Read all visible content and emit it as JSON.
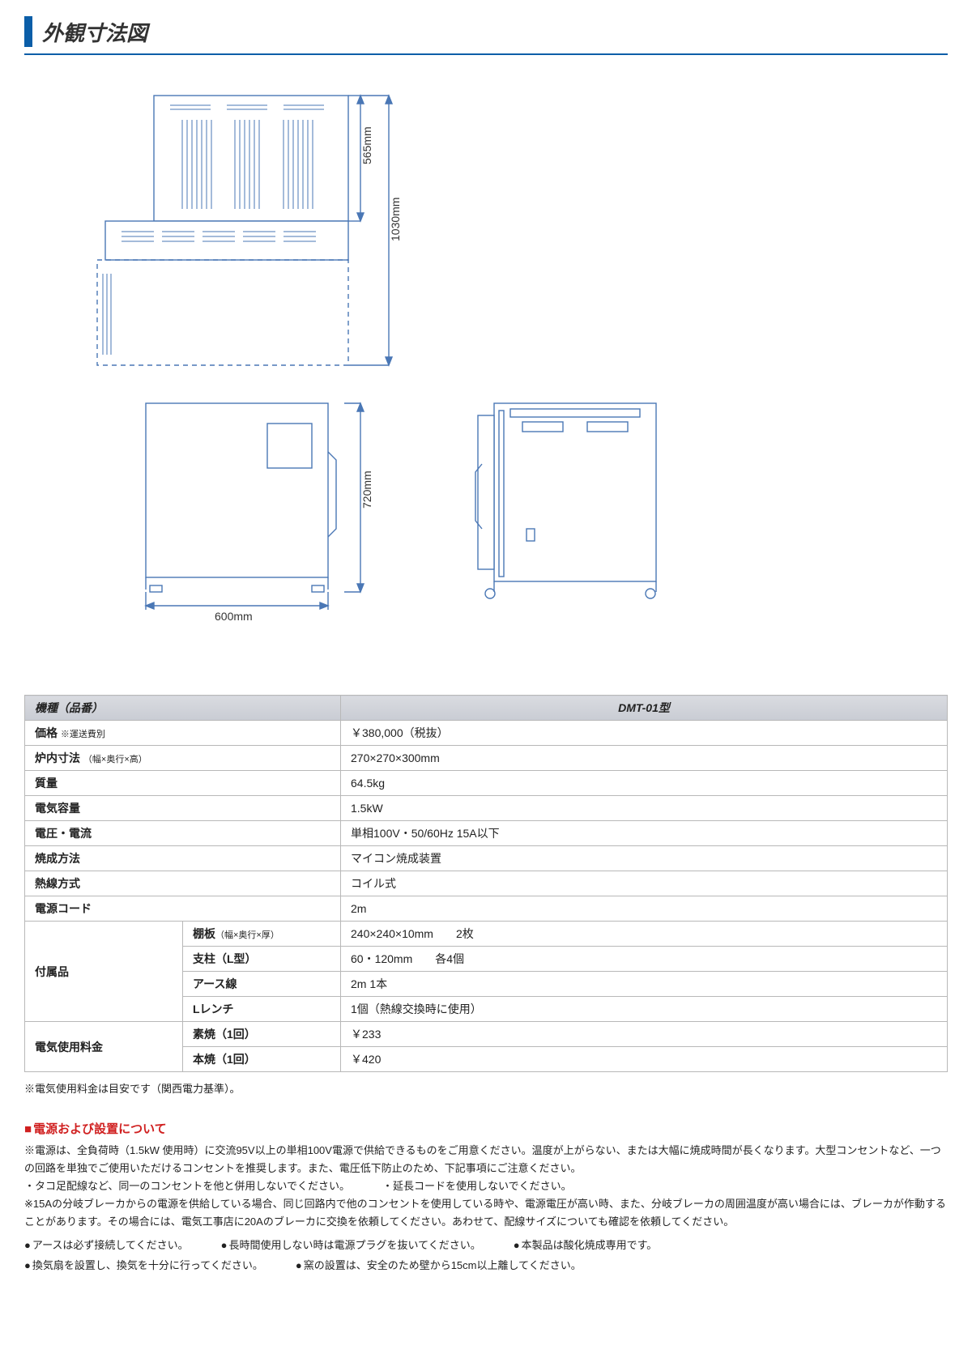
{
  "title": "外観寸法図",
  "diagram": {
    "stroke": "#4a77b5",
    "bg": "#ffffff",
    "dims": {
      "top_height_label": "565mm",
      "total_height_label": "1030mm",
      "front_height_label": "720mm",
      "front_width_label": "600mm"
    }
  },
  "table": {
    "header_label": "機種（品番）",
    "header_model": "DMT-01型",
    "rows": [
      {
        "label": "価格",
        "sub": "※運送費別",
        "value": "￥380,000（税抜）"
      },
      {
        "label": "炉内寸法",
        "sub": "（幅×奥行×高）",
        "value": "270×270×300mm"
      },
      {
        "label": "質量",
        "value": "64.5kg"
      },
      {
        "label": "電気容量",
        "value": "1.5kW"
      },
      {
        "label": "電圧・電流",
        "value": "単相100V・50/60Hz 15A以下"
      },
      {
        "label": "焼成方法",
        "value": "マイコン焼成装置"
      },
      {
        "label": "熱線方式",
        "value": "コイル式"
      },
      {
        "label": "電源コード",
        "value": "2m"
      }
    ],
    "accessories": {
      "label": "付属品",
      "items": [
        {
          "name": "棚板（幅×奥行×厚）",
          "value": "240×240×10mm　　2枚"
        },
        {
          "name": "支柱（L型）",
          "value": "60・120mm　　各4個"
        },
        {
          "name": "アース線",
          "value": "2m 1本"
        },
        {
          "name": "Lレンチ",
          "value": "1個（熱線交換時に使用）"
        }
      ]
    },
    "usage_fee": {
      "label": "電気使用料金",
      "items": [
        {
          "name": "素焼（1回）",
          "value": "￥233"
        },
        {
          "name": "本焼（1回）",
          "value": "￥420"
        }
      ]
    }
  },
  "footnote": "※電気使用料金は目安です（関西電力基準）。",
  "power_section": {
    "title": "電源および設置について",
    "para1": "※電源は、全負荷時（1.5kW 使用時）に交流95V以上の単相100V電源で供給できるものをご用意ください。温度が上がらない、または大幅に焼成時間が長くなります。大型コンセントなど、一つの回路を単独でご使用いただけるコンセントを推奨します。また、電圧低下防止のため、下記事項にご注意ください。",
    "p1_li1": "・タコ足配線など、同一のコンセントを他と併用しないでください。",
    "p1_li2": "・延長コードを使用しないでください。",
    "para2": "※15Aの分岐ブレーカからの電源を供給している場合、同じ回路内で他のコンセントを使用している時や、電源電圧が高い時、また、分岐ブレーカの周囲温度が高い場合には、ブレーカが作動することがあります。その場合には、電気工事店に20Aのブレーカに交換を依頼してください。あわせて、配線サイズについても確認を依頼してください。",
    "bullets_row1": [
      "アースは必ず接続してください。",
      "長時間使用しない時は電源プラグを抜いてください。",
      "本製品は酸化焼成専用です。"
    ],
    "bullets_row2": [
      "換気扇を設置し、換気を十分に行ってください。",
      "窯の設置は、安全のため壁から15cm以上離してください。"
    ]
  }
}
